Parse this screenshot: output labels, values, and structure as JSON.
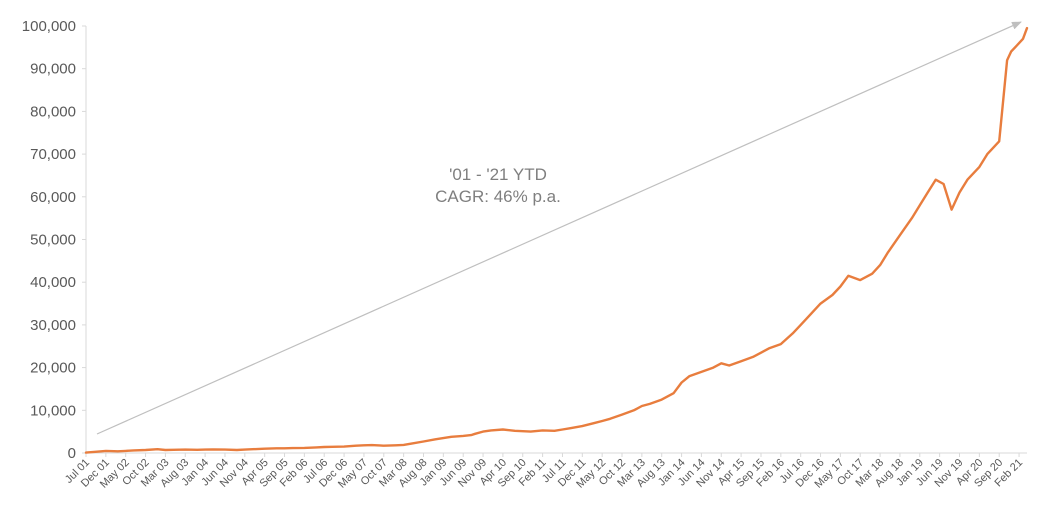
{
  "chart_data": {
    "type": "line",
    "title": "",
    "xlabel": "",
    "ylabel": "",
    "ylim": [
      0,
      100000
    ],
    "yticks": [
      0,
      10000,
      20000,
      30000,
      40000,
      50000,
      60000,
      70000,
      80000,
      90000,
      100000
    ],
    "ytick_labels": [
      "0",
      "10,000",
      "20,000",
      "30,000",
      "40,000",
      "50,000",
      "60,000",
      "70,000",
      "80,000",
      "90,000",
      "100,000"
    ],
    "xtick_labels": [
      "Jul 01",
      "Dec 01",
      "May 02",
      "Oct 02",
      "Mar 03",
      "Aug 03",
      "Jan 04",
      "Jun 04",
      "Nov 04",
      "Apr 05",
      "Sep 05",
      "Feb 06",
      "Jul 06",
      "Dec 06",
      "May 07",
      "Oct 07",
      "Mar 08",
      "Aug 08",
      "Jan 09",
      "Jun 09",
      "Nov 09",
      "Apr 10",
      "Sep 10",
      "Feb 11",
      "Jul 11",
      "Dec 11",
      "May 12",
      "Oct 12",
      "Mar 13",
      "Aug 13",
      "Jan 14",
      "Jun 14",
      "Nov 14",
      "Apr 15",
      "Sep 15",
      "Feb 16",
      "Jul 16",
      "Dec 16",
      "May 17",
      "Oct 17",
      "Mar 18",
      "Aug 18",
      "Jan 19",
      "Jun 19",
      "Nov 19",
      "Apr 20",
      "Sep 20",
      "Feb 21"
    ],
    "grid": false,
    "legend": "none",
    "line_color": "#E87D3E",
    "trend_arrow_color": "#BFBFBF",
    "annotation": {
      "line1": "'01 - '21 YTD",
      "line2": "CAGR: 46% p.a."
    },
    "series": [
      {
        "x": [
          0,
          2,
          5,
          8,
          10,
          12,
          15,
          18,
          20,
          22,
          25,
          28,
          30,
          32,
          35,
          38,
          40,
          42,
          45,
          48,
          50,
          52,
          55,
          58,
          60,
          62,
          65,
          68,
          70,
          72,
          75,
          78,
          80,
          82,
          85,
          88,
          90,
          92,
          95,
          97,
          98,
          100,
          102,
          105,
          108,
          110,
          112,
          115,
          118,
          120,
          122,
          125,
          128,
          130,
          132,
          135,
          138,
          140,
          142,
          145,
          148,
          150,
          152,
          155,
          158,
          160,
          162,
          165,
          168,
          170,
          172,
          175,
          178,
          180,
          182,
          185,
          188,
          190,
          192,
          195,
          198,
          200,
          202,
          205,
          208,
          210,
          212,
          214,
          216,
          218,
          220,
          222,
          225,
          227,
          228,
          230,
          232,
          233,
          235,
          236,
          237
        ],
        "y": [
          100,
          250,
          500,
          400,
          500,
          600,
          700,
          900,
          700,
          750,
          800,
          750,
          800,
          850,
          800,
          700,
          800,
          900,
          1000,
          1100,
          1100,
          1150,
          1200,
          1300,
          1400,
          1450,
          1500,
          1700,
          1800,
          1850,
          1700,
          1800,
          1900,
          2200,
          2700,
          3200,
          3500,
          3800,
          4000,
          4200,
          4500,
          5000,
          5300,
          5500,
          5200,
          5100,
          5000,
          5300,
          5200,
          5500,
          5800,
          6300,
          7000,
          7500,
          8000,
          9000,
          10000,
          11000,
          11500,
          12500,
          14000,
          16500,
          18000,
          19000,
          20000,
          21000,
          20500,
          21500,
          22500,
          23500,
          24500,
          25500,
          28000,
          30000,
          32000,
          35000,
          37000,
          39000,
          41500,
          40500,
          42000,
          44000,
          47000,
          51000,
          55000,
          58000,
          61000,
          64000,
          63000,
          57000,
          61000,
          64000,
          67000,
          70000,
          71000,
          73000,
          92000,
          94000,
          96000,
          97000,
          99500
        ]
      }
    ],
    "x_range": [
      0,
      237
    ]
  }
}
